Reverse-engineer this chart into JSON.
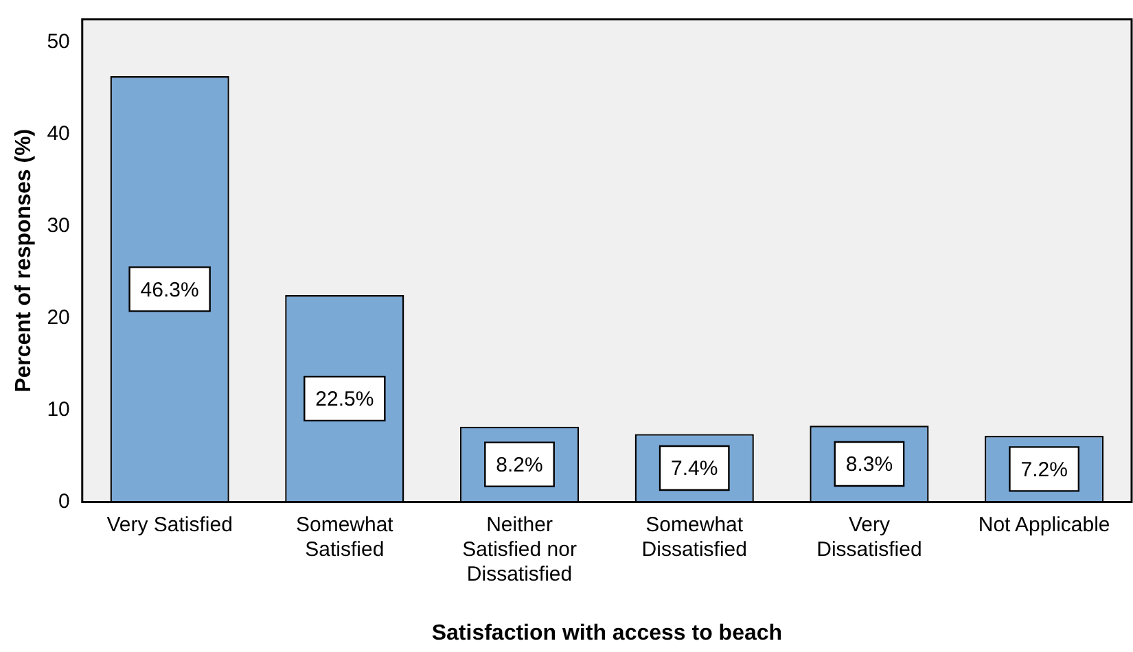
{
  "chart_data": {
    "type": "bar",
    "xlabel": "Satisfaction with access to beach",
    "ylabel": "Percent of responses (%)",
    "categories": [
      "Very Satisfied",
      "Somewhat Satisfied",
      "Neither Satisfied nor Dissatisfied",
      "Somewhat Dissatisfied",
      "Very Dissatisfied",
      "Not Applicable"
    ],
    "values": [
      46.3,
      22.5,
      8.2,
      7.4,
      8.3,
      7.2
    ],
    "value_labels": [
      "46.3%",
      "22.5%",
      "8.2%",
      "7.4%",
      "8.3%",
      "7.2%"
    ],
    "color": "#7ba9d6",
    "ylim": [
      0,
      52.5
    ],
    "yticks": [
      0,
      10,
      20,
      30,
      40,
      50
    ],
    "grid": false,
    "legend": false
  }
}
